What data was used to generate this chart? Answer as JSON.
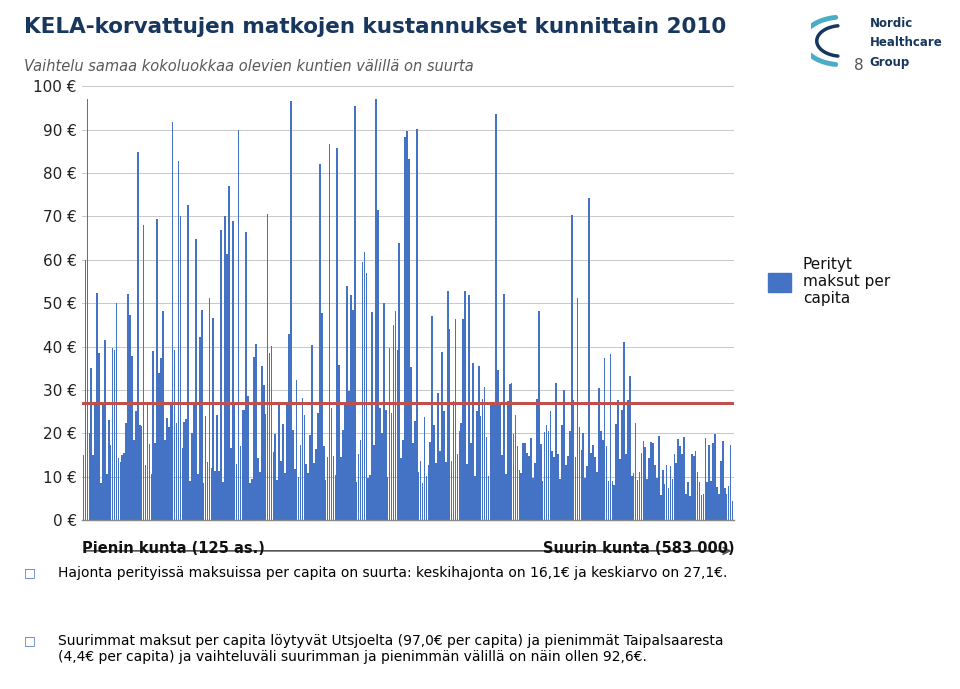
{
  "title": "KELA-korvattujen matkojen kustannukset kunnittain 2010",
  "subtitle": "Vaihtelu samaa kokoluokkaa olevien kuntien välillä on suurta",
  "page_number": "8",
  "ylabel_ticks": [
    0,
    10,
    20,
    30,
    40,
    50,
    60,
    70,
    80,
    90,
    100
  ],
  "mean_value": 27.1,
  "std_value": 16.1,
  "bar_color": "#4472C4",
  "mean_line_color": "#C0504D",
  "xlabel_left": "Pienin kunta (125 as.)",
  "xlabel_right": "Suurin kunta (583 000)",
  "legend_label": "Perityt\nmaksut per\ncapita",
  "bullet1": "Hajonta perityissä maksuissa per capita on suurta: keskihajonta on 16,1€ ja keskiarvo on 27,1€.",
  "bullet2": "Suurimmat maksut per capita löytyvät Utsjoelta (97,0€ per capita) ja pienimmät Taipalsaaresta\n(4,4€ per capita) ja vaihteluväli suurimman ja pienimmän välillä on näin ollen 92,6€.",
  "title_color": "#17375E",
  "subtitle_color": "#595959",
  "background_color": "#FFFFFF",
  "n_municipalities": 336,
  "max_value": 97.0,
  "min_value": 4.4,
  "divider_color": "#4BACC6",
  "text_color": "#000000"
}
